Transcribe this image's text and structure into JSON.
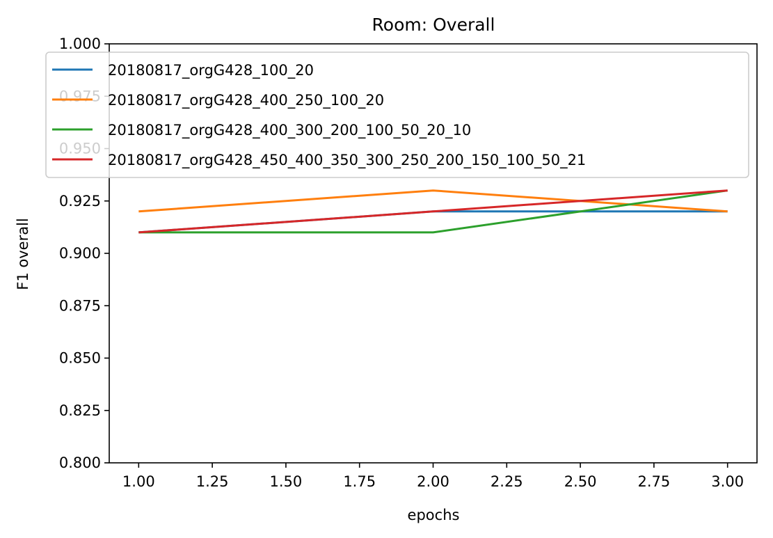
{
  "chart_data": {
    "type": "line",
    "title": "Room: Overall",
    "xlabel": "epochs",
    "ylabel": "F1 overall",
    "xlim": [
      0.9,
      3.1
    ],
    "ylim": [
      0.8,
      1.0
    ],
    "x": [
      1.0,
      2.0,
      3.0
    ],
    "xticks": [
      "1.00",
      "1.25",
      "1.50",
      "1.75",
      "2.00",
      "2.25",
      "2.50",
      "2.75",
      "3.00"
    ],
    "yticks": [
      "0.800",
      "0.825",
      "0.850",
      "0.875",
      "0.900",
      "0.925",
      "0.950",
      "0.975",
      "1.000"
    ],
    "grid": false,
    "legend_position": "top",
    "series": [
      {
        "name": "20180817_orgG428_100_20",
        "color": "#1f77b4",
        "values": [
          0.91,
          0.92,
          0.92
        ]
      },
      {
        "name": "20180817_orgG428_400_250_100_20",
        "color": "#ff7f0e",
        "values": [
          0.92,
          0.93,
          0.92
        ]
      },
      {
        "name": "20180817_orgG428_400_300_200_100_50_20_10",
        "color": "#2ca02c",
        "values": [
          0.91,
          0.91,
          0.93
        ]
      },
      {
        "name": "20180817_orgG428_450_400_350_300_250_200_150_100_50_21",
        "color": "#d62728",
        "values": [
          0.91,
          0.92,
          0.93
        ]
      }
    ]
  }
}
